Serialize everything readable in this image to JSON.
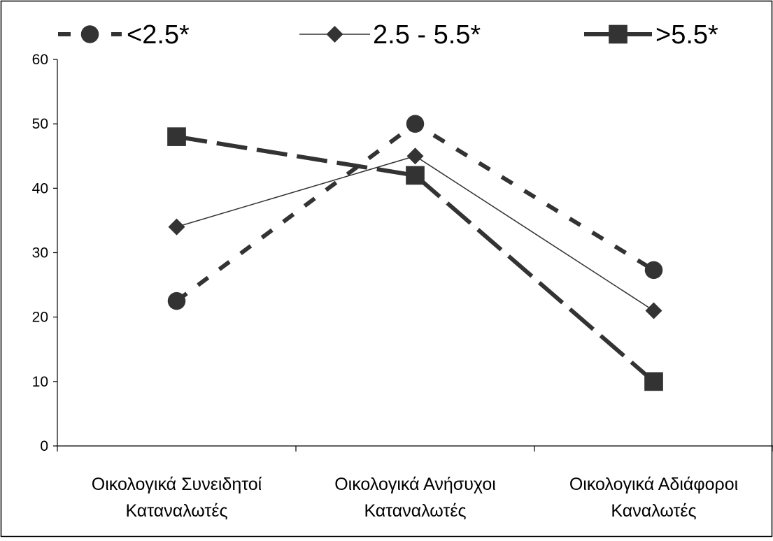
{
  "chart_data": {
    "type": "line",
    "title": "",
    "xlabel": "",
    "ylabel": "",
    "ylim": [
      0,
      60
    ],
    "yticks": [
      "0",
      "10",
      "20",
      "30",
      "40",
      "50",
      "60"
    ],
    "categories": [
      [
        "Οικολογικά Συνειδητοί",
        "Καταναλωτές"
      ],
      [
        "Οικολογικά Ανήσυχοι",
        "Καταναλωτές"
      ],
      [
        "Οικολογικά Αδιάφοροι",
        "Καναλωτές"
      ]
    ],
    "grid": false,
    "legend_position": "top",
    "series": [
      {
        "name": "<2.5*",
        "values": [
          22.5,
          50,
          27.3
        ],
        "marker": "circle",
        "line": "short-dash",
        "width": 6,
        "color": "#333333"
      },
      {
        "name": "2.5 - 5.5*",
        "values": [
          34,
          45,
          21
        ],
        "marker": "diamond",
        "line": "solid",
        "width": 1.5,
        "color": "#333333"
      },
      {
        "name": ">5.5*",
        "values": [
          48,
          42,
          10
        ],
        "marker": "square",
        "line": "long-dash",
        "width": 6,
        "color": "#333333"
      }
    ]
  }
}
